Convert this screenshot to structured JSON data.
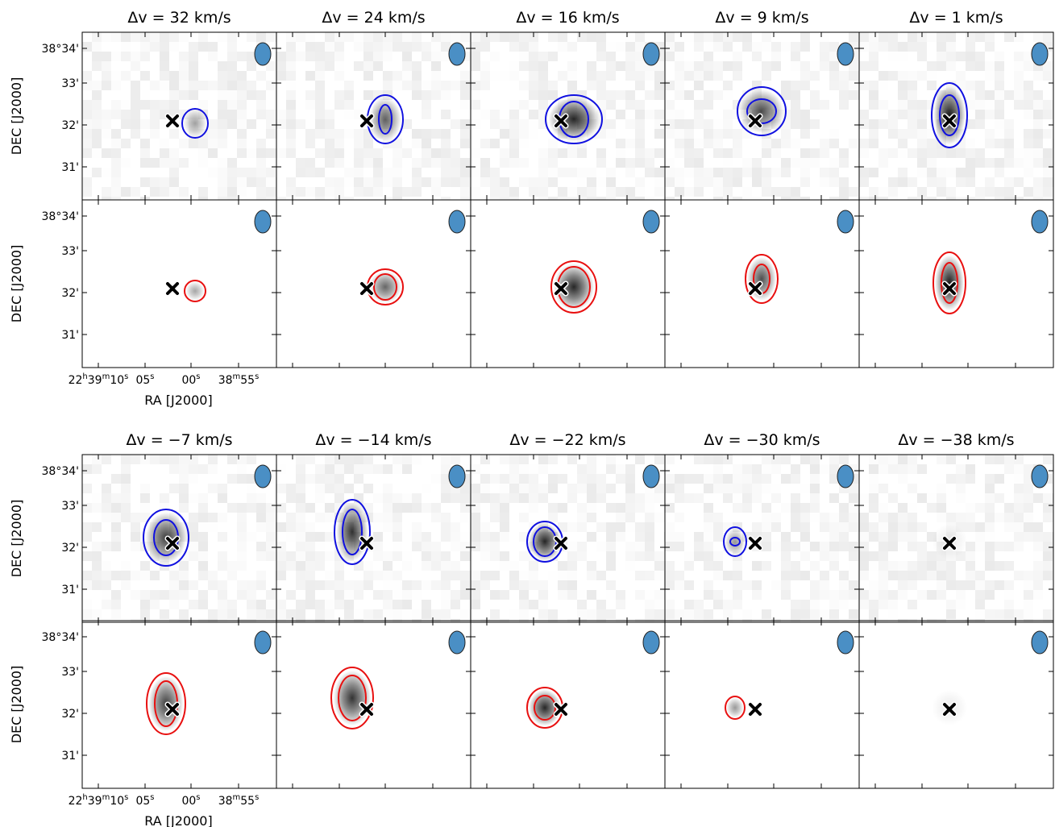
{
  "figure": {
    "blocks": [
      {
        "titles": [
          "Δv = 32 km/s",
          "Δv = 24 km/s",
          "Δv = 16 km/s",
          "Δv = 9 km/s",
          "Δv = 1 km/s"
        ]
      },
      {
        "titles": [
          "Δv = −7 km/s",
          "Δv = −14 km/s",
          "Δv = −22 km/s",
          "Δv = −30 km/s",
          "Δv = −38 km/s"
        ]
      }
    ],
    "ytick_labels": [
      "38°34'",
      "33'",
      "32'",
      "31'"
    ],
    "xtick_labels": [
      [
        "22",
        "h",
        "39",
        "m",
        "10",
        "s"
      ],
      [
        "05",
        "s"
      ],
      [
        "00",
        "s"
      ],
      [
        "38",
        "m",
        "55",
        "s"
      ]
    ],
    "ylabel": "DEC [J2000]",
    "xlabel": "RA [J2000]"
  }
}
